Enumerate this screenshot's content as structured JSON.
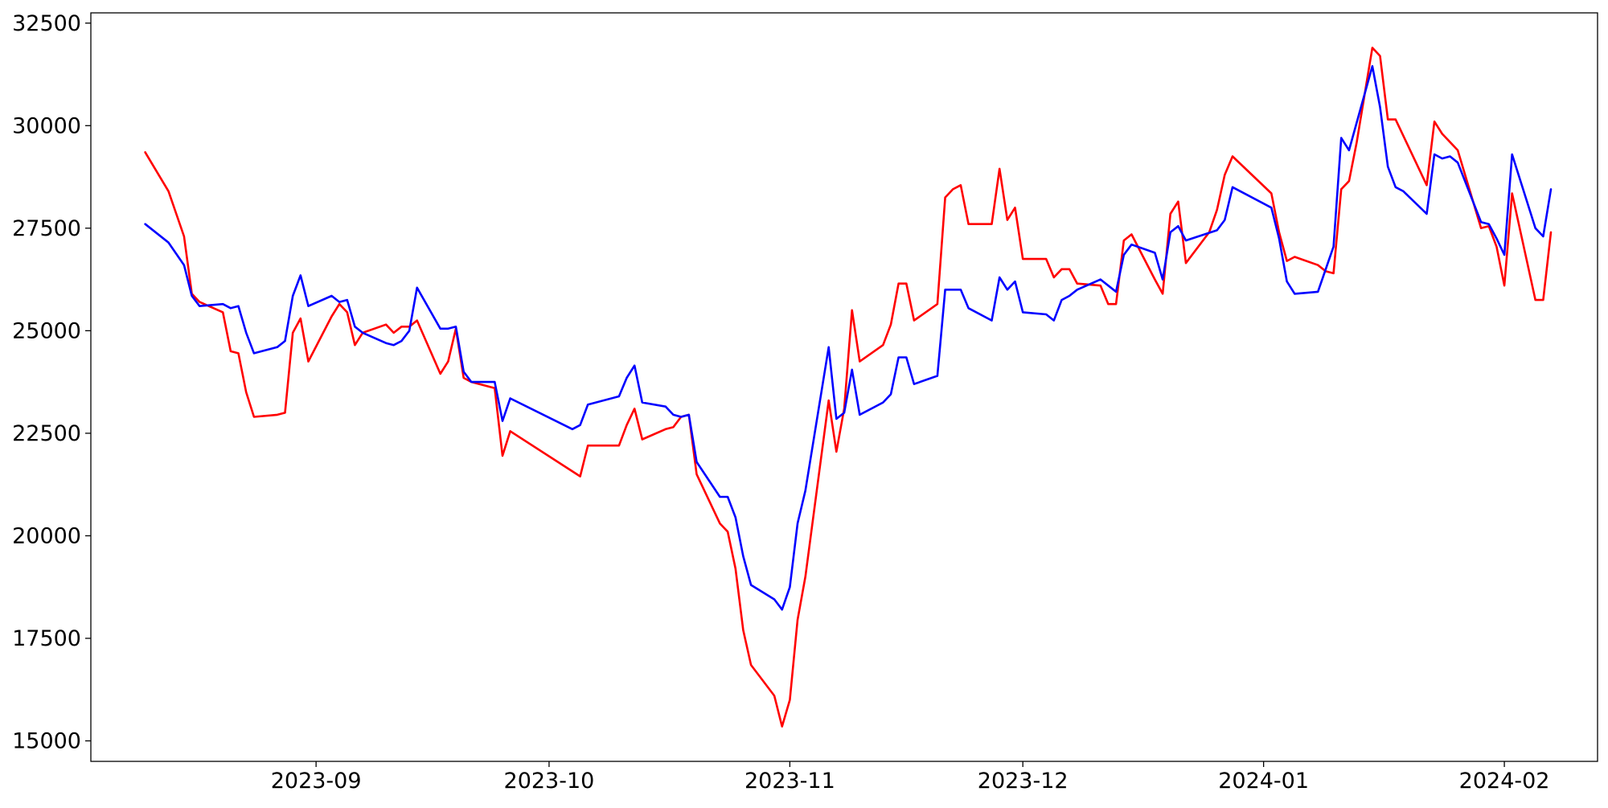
{
  "chart_data": {
    "type": "line",
    "title": "",
    "xlabel": "",
    "ylabel": "",
    "grid": false,
    "legend": "none",
    "xlim": [
      "2023-08-03",
      "2024-02-13"
    ],
    "ylim": [
      14500,
      32750
    ],
    "x_ticks": [
      "2023-09-01",
      "2023-10-01",
      "2023-11-01",
      "2023-12-01",
      "2024-01-01",
      "2024-02-01"
    ],
    "x_tick_labels": [
      "2023-09",
      "2023-10",
      "2023-11",
      "2023-12",
      "2024-01",
      "2024-02"
    ],
    "y_ticks": [
      15000,
      17500,
      20000,
      22500,
      25000,
      27500,
      30000,
      32500
    ],
    "y_tick_labels": [
      "15000",
      "17500",
      "20000",
      "22500",
      "25000",
      "27500",
      "30000",
      "32500"
    ],
    "series": [
      {
        "color": "#ff0000",
        "points": [
          [
            "2023-08-10",
            29350
          ],
          [
            "2023-08-13",
            28400
          ],
          [
            "2023-08-15",
            27300
          ],
          [
            "2023-08-16",
            25900
          ],
          [
            "2023-08-17",
            25700
          ],
          [
            "2023-08-20",
            25450
          ],
          [
            "2023-08-21",
            24500
          ],
          [
            "2023-08-22",
            24450
          ],
          [
            "2023-08-23",
            23500
          ],
          [
            "2023-08-24",
            22900
          ],
          [
            "2023-08-27",
            22950
          ],
          [
            "2023-08-28",
            23000
          ],
          [
            "2023-08-29",
            24950
          ],
          [
            "2023-08-30",
            25300
          ],
          [
            "2023-08-31",
            24250
          ],
          [
            "2023-09-03",
            25350
          ],
          [
            "2023-09-04",
            25650
          ],
          [
            "2023-09-05",
            25450
          ],
          [
            "2023-09-06",
            24650
          ],
          [
            "2023-09-07",
            24950
          ],
          [
            "2023-09-10",
            25150
          ],
          [
            "2023-09-11",
            24950
          ],
          [
            "2023-09-12",
            25100
          ],
          [
            "2023-09-13",
            25100
          ],
          [
            "2023-09-14",
            25250
          ],
          [
            "2023-09-17",
            23950
          ],
          [
            "2023-09-18",
            24250
          ],
          [
            "2023-09-19",
            25050
          ],
          [
            "2023-09-20",
            23850
          ],
          [
            "2023-09-21",
            23750
          ],
          [
            "2023-09-24",
            23600
          ],
          [
            "2023-09-25",
            21950
          ],
          [
            "2023-09-26",
            22550
          ],
          [
            "2023-10-05",
            21450
          ],
          [
            "2023-10-06",
            22200
          ],
          [
            "2023-10-10",
            22200
          ],
          [
            "2023-10-11",
            22700
          ],
          [
            "2023-10-12",
            23100
          ],
          [
            "2023-10-13",
            22350
          ],
          [
            "2023-10-16",
            22600
          ],
          [
            "2023-10-17",
            22650
          ],
          [
            "2023-10-18",
            22900
          ],
          [
            "2023-10-19",
            22950
          ],
          [
            "2023-10-20",
            21500
          ],
          [
            "2023-10-23",
            20300
          ],
          [
            "2023-10-24",
            20100
          ],
          [
            "2023-10-25",
            19200
          ],
          [
            "2023-10-26",
            17700
          ],
          [
            "2023-10-27",
            16850
          ],
          [
            "2023-10-30",
            16100
          ],
          [
            "2023-10-31",
            15350
          ],
          [
            "2023-11-01",
            16000
          ],
          [
            "2023-11-02",
            17950
          ],
          [
            "2023-11-03",
            19000
          ],
          [
            "2023-11-06",
            23300
          ],
          [
            "2023-11-07",
            22050
          ],
          [
            "2023-11-08",
            23100
          ],
          [
            "2023-11-09",
            25500
          ],
          [
            "2023-11-10",
            24250
          ],
          [
            "2023-11-13",
            24650
          ],
          [
            "2023-11-14",
            25150
          ],
          [
            "2023-11-15",
            26150
          ],
          [
            "2023-11-16",
            26150
          ],
          [
            "2023-11-17",
            25250
          ],
          [
            "2023-11-20",
            25650
          ],
          [
            "2023-11-21",
            28250
          ],
          [
            "2023-11-22",
            28450
          ],
          [
            "2023-11-23",
            28550
          ],
          [
            "2023-11-24",
            27600
          ],
          [
            "2023-11-27",
            27600
          ],
          [
            "2023-11-28",
            28950
          ],
          [
            "2023-11-29",
            27700
          ],
          [
            "2023-11-30",
            28000
          ],
          [
            "2023-12-01",
            26750
          ],
          [
            "2023-12-04",
            26750
          ],
          [
            "2023-12-05",
            26300
          ],
          [
            "2023-12-06",
            26500
          ],
          [
            "2023-12-07",
            26500
          ],
          [
            "2023-12-08",
            26150
          ],
          [
            "2023-12-11",
            26100
          ],
          [
            "2023-12-12",
            25650
          ],
          [
            "2023-12-13",
            25650
          ],
          [
            "2023-12-14",
            27200
          ],
          [
            "2023-12-15",
            27350
          ],
          [
            "2023-12-18",
            26250
          ],
          [
            "2023-12-19",
            25900
          ],
          [
            "2023-12-20",
            27850
          ],
          [
            "2023-12-21",
            28150
          ],
          [
            "2023-12-22",
            26650
          ],
          [
            "2023-12-25",
            27400
          ],
          [
            "2023-12-26",
            27950
          ],
          [
            "2023-12-27",
            28800
          ],
          [
            "2023-12-28",
            29250
          ],
          [
            "2024-01-02",
            28350
          ],
          [
            "2024-01-03",
            27400
          ],
          [
            "2024-01-04",
            26700
          ],
          [
            "2024-01-05",
            26800
          ],
          [
            "2024-01-08",
            26600
          ],
          [
            "2024-01-09",
            26450
          ],
          [
            "2024-01-10",
            26400
          ],
          [
            "2024-01-11",
            28450
          ],
          [
            "2024-01-12",
            28650
          ],
          [
            "2024-01-13",
            29600
          ],
          [
            "2024-01-15",
            31900
          ],
          [
            "2024-01-16",
            31700
          ],
          [
            "2024-01-17",
            30150
          ],
          [
            "2024-01-18",
            30150
          ],
          [
            "2024-01-22",
            28550
          ],
          [
            "2024-01-23",
            30100
          ],
          [
            "2024-01-24",
            29800
          ],
          [
            "2024-01-25",
            29600
          ],
          [
            "2024-01-26",
            29400
          ],
          [
            "2024-01-29",
            27500
          ],
          [
            "2024-01-30",
            27550
          ],
          [
            "2024-01-31",
            27050
          ],
          [
            "2024-02-01",
            26100
          ],
          [
            "2024-02-02",
            28350
          ],
          [
            "2024-02-05",
            25750
          ],
          [
            "2024-02-06",
            25750
          ],
          [
            "2024-02-07",
            27400
          ]
        ]
      },
      {
        "color": "#0000ff",
        "points": [
          [
            "2023-08-10",
            27600
          ],
          [
            "2023-08-13",
            27150
          ],
          [
            "2023-08-15",
            26600
          ],
          [
            "2023-08-16",
            25850
          ],
          [
            "2023-08-17",
            25600
          ],
          [
            "2023-08-20",
            25650
          ],
          [
            "2023-08-21",
            25550
          ],
          [
            "2023-08-22",
            25600
          ],
          [
            "2023-08-23",
            24950
          ],
          [
            "2023-08-24",
            24450
          ],
          [
            "2023-08-27",
            24600
          ],
          [
            "2023-08-28",
            24750
          ],
          [
            "2023-08-29",
            25850
          ],
          [
            "2023-08-30",
            26350
          ],
          [
            "2023-08-31",
            25600
          ],
          [
            "2023-09-03",
            25850
          ],
          [
            "2023-09-04",
            25700
          ],
          [
            "2023-09-05",
            25750
          ],
          [
            "2023-09-06",
            25100
          ],
          [
            "2023-09-07",
            24950
          ],
          [
            "2023-09-10",
            24700
          ],
          [
            "2023-09-11",
            24650
          ],
          [
            "2023-09-12",
            24750
          ],
          [
            "2023-09-13",
            25000
          ],
          [
            "2023-09-14",
            26050
          ],
          [
            "2023-09-17",
            25050
          ],
          [
            "2023-09-18",
            25050
          ],
          [
            "2023-09-19",
            25100
          ],
          [
            "2023-09-20",
            24000
          ],
          [
            "2023-09-21",
            23750
          ],
          [
            "2023-09-24",
            23750
          ],
          [
            "2023-09-25",
            22800
          ],
          [
            "2023-09-26",
            23350
          ],
          [
            "2023-10-04",
            22600
          ],
          [
            "2023-10-05",
            22700
          ],
          [
            "2023-10-06",
            23200
          ],
          [
            "2023-10-10",
            23400
          ],
          [
            "2023-10-11",
            23850
          ],
          [
            "2023-10-12",
            24150
          ],
          [
            "2023-10-13",
            23250
          ],
          [
            "2023-10-16",
            23150
          ],
          [
            "2023-10-17",
            22950
          ],
          [
            "2023-10-18",
            22900
          ],
          [
            "2023-10-19",
            22950
          ],
          [
            "2023-10-20",
            21800
          ],
          [
            "2023-10-23",
            20950
          ],
          [
            "2023-10-24",
            20950
          ],
          [
            "2023-10-25",
            20450
          ],
          [
            "2023-10-26",
            19500
          ],
          [
            "2023-10-27",
            18800
          ],
          [
            "2023-10-30",
            18450
          ],
          [
            "2023-10-31",
            18200
          ],
          [
            "2023-11-01",
            18750
          ],
          [
            "2023-11-02",
            20300
          ],
          [
            "2023-11-03",
            21100
          ],
          [
            "2023-11-06",
            24600
          ],
          [
            "2023-11-07",
            22850
          ],
          [
            "2023-11-08",
            23000
          ],
          [
            "2023-11-09",
            24050
          ],
          [
            "2023-11-10",
            22950
          ],
          [
            "2023-11-13",
            23250
          ],
          [
            "2023-11-14",
            23450
          ],
          [
            "2023-11-15",
            24350
          ],
          [
            "2023-11-16",
            24350
          ],
          [
            "2023-11-17",
            23700
          ],
          [
            "2023-11-20",
            23900
          ],
          [
            "2023-11-21",
            26000
          ],
          [
            "2023-11-23",
            26000
          ],
          [
            "2023-11-24",
            25550
          ],
          [
            "2023-11-27",
            25250
          ],
          [
            "2023-11-28",
            26300
          ],
          [
            "2023-11-29",
            26000
          ],
          [
            "2023-11-30",
            26200
          ],
          [
            "2023-12-01",
            25450
          ],
          [
            "2023-12-04",
            25400
          ],
          [
            "2023-12-05",
            25250
          ],
          [
            "2023-12-06",
            25750
          ],
          [
            "2023-12-07",
            25850
          ],
          [
            "2023-12-08",
            26000
          ],
          [
            "2023-12-11",
            26250
          ],
          [
            "2023-12-12",
            26100
          ],
          [
            "2023-12-13",
            25950
          ],
          [
            "2023-12-14",
            26850
          ],
          [
            "2023-12-15",
            27100
          ],
          [
            "2023-12-18",
            26900
          ],
          [
            "2023-12-19",
            26250
          ],
          [
            "2023-12-20",
            27400
          ],
          [
            "2023-12-21",
            27550
          ],
          [
            "2023-12-22",
            27200
          ],
          [
            "2023-12-26",
            27450
          ],
          [
            "2023-12-27",
            27700
          ],
          [
            "2023-12-28",
            28500
          ],
          [
            "2024-01-02",
            28000
          ],
          [
            "2024-01-03",
            27250
          ],
          [
            "2024-01-04",
            26200
          ],
          [
            "2024-01-05",
            25900
          ],
          [
            "2024-01-08",
            25950
          ],
          [
            "2024-01-10",
            27050
          ],
          [
            "2024-01-11",
            29700
          ],
          [
            "2024-01-12",
            29400
          ],
          [
            "2024-01-15",
            31450
          ],
          [
            "2024-01-16",
            30450
          ],
          [
            "2024-01-17",
            29000
          ],
          [
            "2024-01-18",
            28500
          ],
          [
            "2024-01-19",
            28400
          ],
          [
            "2024-01-22",
            27850
          ],
          [
            "2024-01-23",
            29300
          ],
          [
            "2024-01-24",
            29200
          ],
          [
            "2024-01-25",
            29250
          ],
          [
            "2024-01-26",
            29100
          ],
          [
            "2024-01-29",
            27650
          ],
          [
            "2024-01-30",
            27600
          ],
          [
            "2024-01-31",
            27250
          ],
          [
            "2024-02-01",
            26850
          ],
          [
            "2024-02-02",
            29300
          ],
          [
            "2024-02-05",
            27500
          ],
          [
            "2024-02-06",
            27300
          ],
          [
            "2024-02-07",
            28450
          ]
        ]
      }
    ]
  }
}
